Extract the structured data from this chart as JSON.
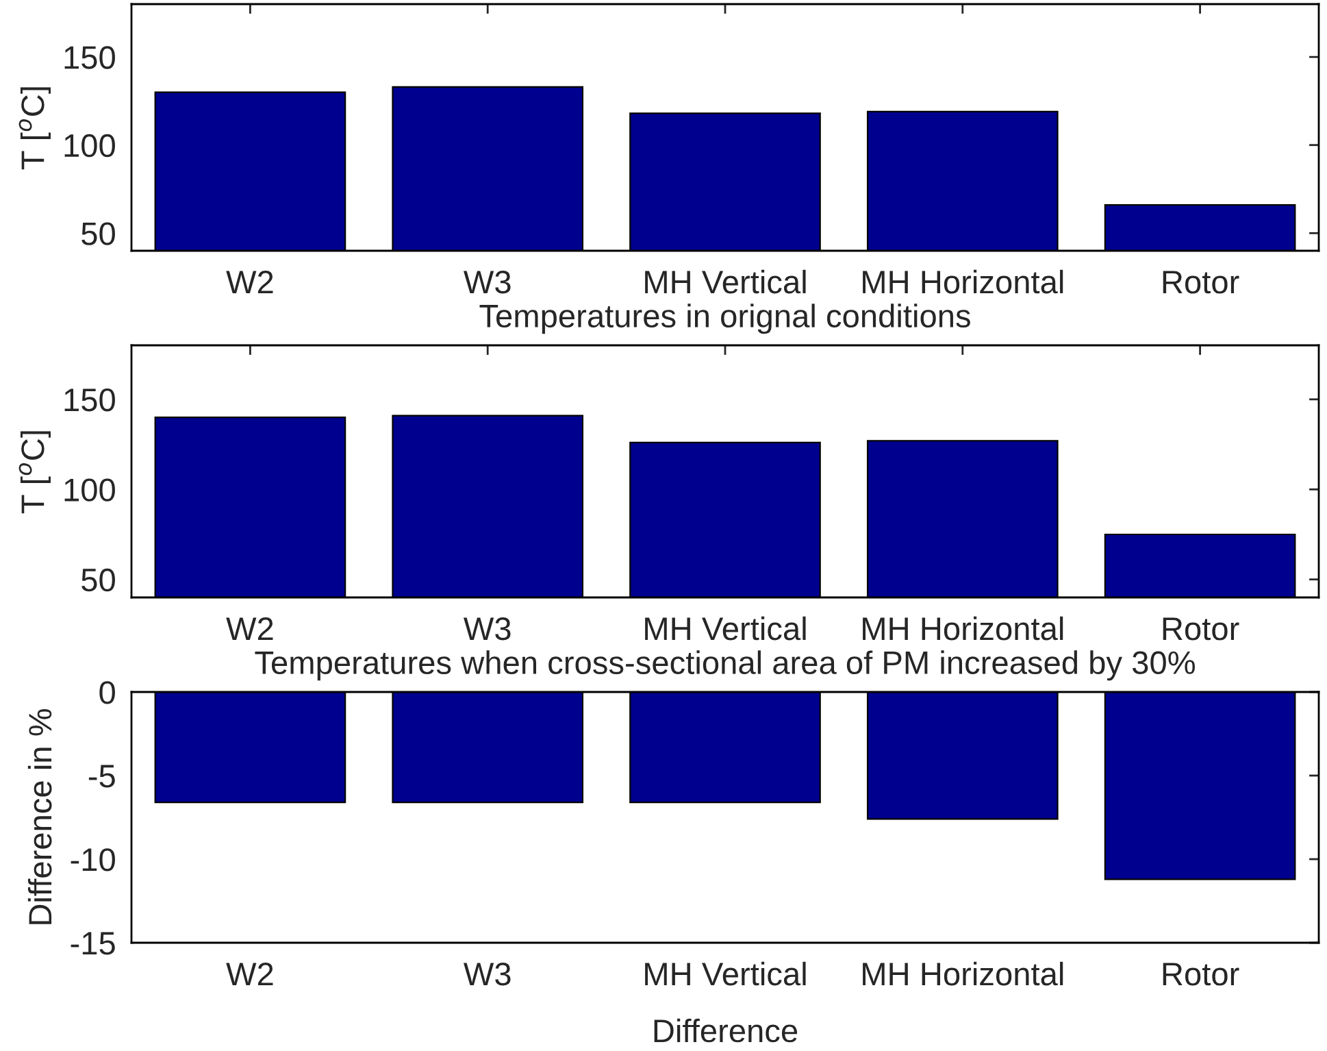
{
  "chart_data": [
    {
      "type": "bar",
      "categories": [
        "W2",
        "W3",
        "MH Vertical",
        "MH Horizontal",
        "Rotor"
      ],
      "values": [
        130,
        133,
        118,
        119,
        66
      ],
      "color": "#00008f",
      "xlabel": "Temperatures in orignal conditions",
      "ylabel": "T [$^{o}$C]",
      "ylim": [
        40,
        180
      ],
      "yticks": [
        50,
        100,
        150
      ],
      "grid": false
    },
    {
      "type": "bar",
      "categories": [
        "W2",
        "W3",
        "MH Vertical",
        "MH Horizontal",
        "Rotor"
      ],
      "values": [
        140,
        141,
        126,
        127,
        75
      ],
      "color": "#00008f",
      "xlabel": "Temperatures when cross-sectional area of PM increased by 30%",
      "ylabel": "T [$^{o}$C]",
      "ylim": [
        40,
        180
      ],
      "yticks": [
        50,
        100,
        150
      ],
      "grid": false
    },
    {
      "type": "bar",
      "categories": [
        "W2",
        "W3",
        "MH Vertical",
        "MH Horizontal",
        "Rotor"
      ],
      "values": [
        -6.6,
        -6.6,
        -6.6,
        -7.6,
        -11.2
      ],
      "color": "#00008f",
      "xlabel": "Difference",
      "ylabel": "Difference in %",
      "ylim": [
        -15,
        0
      ],
      "yticks": [
        0,
        -5,
        -10,
        -15
      ],
      "grid": false
    }
  ]
}
